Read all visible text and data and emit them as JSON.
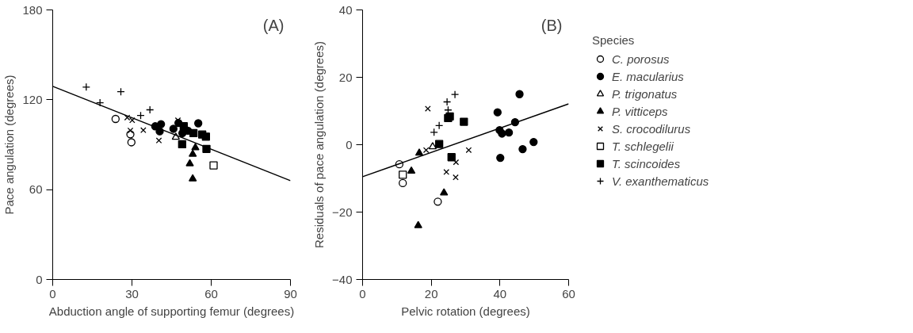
{
  "chart_data": [
    {
      "type": "scatter",
      "title": "(A)",
      "xlabel": "Abduction angle of supporting femur (degrees)",
      "ylabel": "Pace angulation (degrees)",
      "xlim": [
        0,
        90
      ],
      "ylim": [
        0,
        180
      ],
      "xticks": [
        0,
        30,
        60,
        90
      ],
      "yticks": [
        0,
        60,
        120,
        180
      ],
      "grid": false,
      "series": [
        {
          "color": "#000000",
          "marker": "circle_open",
          "x": [
            23.8,
            29.4,
            29.8
          ],
          "values": [
            107.2,
            97,
            91.6
          ]
        },
        {
          "color": "#000000",
          "marker": "circle",
          "x": [
            38.8,
            41.0,
            40.5,
            45.7,
            47.6,
            49.1,
            51.2,
            55.1
          ],
          "values": [
            102.3,
            103.7,
            98.9,
            100.6,
            104.5,
            97.7,
            99.3,
            104.3
          ]
        },
        {
          "color": "#000000",
          "marker": "triangle_open",
          "x": [
            46.6
          ],
          "values": [
            95.0
          ]
        },
        {
          "color": "#000000",
          "marker": "triangle",
          "x": [
            54.0,
            53.0,
            51.9,
            53.0
          ],
          "values": [
            88.0,
            83.7,
            77.3,
            67.2
          ]
        },
        {
          "color": "#000000",
          "marker": "x",
          "x": [
            28.2,
            30.1,
            29.4,
            34.3,
            40.2,
            47.4
          ],
          "values": [
            108.1,
            106.3,
            99.5,
            99.7,
            92.8,
            106.3
          ]
        },
        {
          "color": "#000000",
          "marker": "square_open",
          "x": [
            60.9
          ],
          "values": [
            76.2
          ]
        },
        {
          "color": "#000000",
          "marker": "square",
          "x": [
            49.6,
            53.3,
            49.0,
            56.6,
            58.0,
            58.2
          ],
          "values": [
            102.3,
            97.7,
            90.3,
            96.8,
            95.4,
            87.2
          ]
        },
        {
          "color": "#000000",
          "marker": "cross",
          "x": [
            12.7,
            17.9,
            25.8,
            33.3,
            36.8
          ],
          "values": [
            128.5,
            118,
            125.4,
            109.5,
            113.3
          ]
        },
        {
          "type": "line",
          "color": "#000000",
          "x": [
            0,
            90
          ],
          "values": [
            129,
            66
          ]
        }
      ]
    },
    {
      "type": "scatter",
      "title": "(B)",
      "xlabel": "Pelvic rotation (degrees)",
      "ylabel": "Residuals of pace angulation (degrees)",
      "legend_title": "Species",
      "xlim": [
        0,
        60
      ],
      "ylim": [
        -40,
        40
      ],
      "xticks": [
        0,
        20,
        40,
        60
      ],
      "yticks": [
        -40,
        -20,
        0,
        20,
        40
      ],
      "grid": false,
      "legend": "right",
      "series": [
        {
          "name": "C. porosus",
          "color": "#000000",
          "marker": "circle_open",
          "x": [
            10.7,
            11.7,
            21.9
          ],
          "values": [
            -5.8,
            -11.4,
            -16.9
          ]
        },
        {
          "name": "E. macularius",
          "color": "#000000",
          "marker": "circle",
          "x": [
            45.7,
            39.3,
            44.4,
            39.9,
            40.6,
            42.6,
            49.8,
            46.6,
            40.1
          ],
          "values": [
            15.0,
            9.6,
            6.7,
            4.3,
            3.3,
            3.6,
            0.8,
            -1.3,
            -3.9
          ]
        },
        {
          "name": "P. trigonatus",
          "color": "#000000",
          "marker": "triangle_open",
          "x": [
            20.4
          ],
          "values": [
            -0.6
          ]
        },
        {
          "name": "P. vitticeps",
          "color": "#000000",
          "marker": "triangle",
          "x": [
            16.5,
            14.2,
            23.7,
            16.2
          ],
          "values": [
            -2.5,
            -7.8,
            -14.3,
            -24.0
          ]
        },
        {
          "name": "S. crocodilurus",
          "color": "#000000",
          "marker": "x",
          "x": [
            19.0,
            18.5,
            27.2,
            24.4,
            27.1,
            30.9
          ],
          "values": [
            10.7,
            -1.6,
            -5.2,
            -8.1,
            -9.7,
            -1.6
          ]
        },
        {
          "name": "T. schlegelii",
          "color": "#000000",
          "marker": "square_open",
          "x": [
            11.7
          ],
          "values": [
            -8.9
          ]
        },
        {
          "name": "T. scincoides",
          "color": "#000000",
          "marker": "square",
          "x": [
            25.4,
            24.9,
            29.5,
            22.3,
            25.9
          ],
          "values": [
            8.4,
            7.9,
            6.8,
            0.2,
            -3.7
          ]
        },
        {
          "name": "V. exanthematicus",
          "color": "#000000",
          "marker": "cross",
          "x": [
            24.9,
            26.9,
            24.6,
            22.3,
            20.8
          ],
          "values": [
            10.3,
            14.9,
            12.7,
            5.7,
            3.7
          ]
        },
        {
          "type": "line",
          "color": "#000000",
          "x": [
            0,
            60
          ],
          "values": [
            -9.5,
            12.1
          ]
        }
      ]
    }
  ]
}
